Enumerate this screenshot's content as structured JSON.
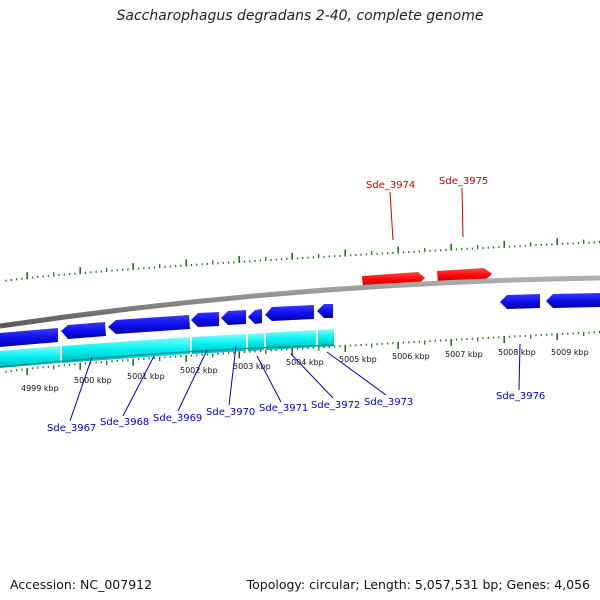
{
  "title": "Saccharophagus degradans 2-40, complete genome",
  "accession": "Accession: NC_007912",
  "summary": "Topology: circular; Length: 5,057,531 bp; Genes: 4,056",
  "scale_labels": [
    "4999 kbp",
    "5000 kbp",
    "5001 kbp",
    "5002 kbp",
    "5003 kbp",
    "5004 kbp",
    "5005 kbp",
    "5006 kbp",
    "5007 kbp",
    "5008 kbp",
    "5009 kbp"
  ],
  "genes_highlight": [
    "Sde_3974",
    "Sde_3975"
  ],
  "genes_lower": [
    "Sde_3967",
    "Sde_3968",
    "Sde_3969",
    "Sde_3970",
    "Sde_3971",
    "Sde_3972",
    "Sde_3973",
    "Sde_3976"
  ],
  "colors": {
    "forward_gene": "#ff0000",
    "reverse_gene": "#0000ee",
    "cds_track": "#00e5e5",
    "backbone": "#808080",
    "tick": "#1a7a1a",
    "label_red": "#cc0000",
    "label_blue": "#0000cc"
  }
}
